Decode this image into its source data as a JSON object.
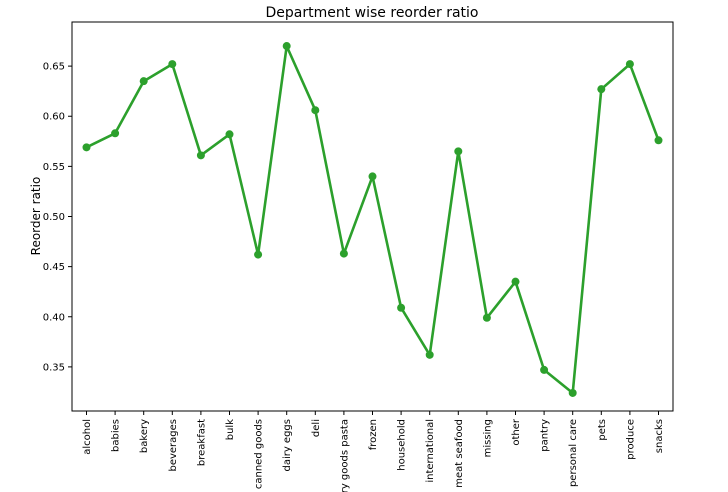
{
  "chart_data": {
    "type": "line",
    "title": "Department wise reorder ratio",
    "xlabel": "",
    "ylabel": "Reorder ratio",
    "categories": [
      "alcohol",
      "babies",
      "bakery",
      "beverages",
      "breakfast",
      "bulk",
      "canned goods",
      "dairy eggs",
      "deli",
      "dry goods pasta",
      "frozen",
      "household",
      "international",
      "meat seafood",
      "missing",
      "other",
      "pantry",
      "personal care",
      "pets",
      "produce",
      "snacks"
    ],
    "series": [
      {
        "name": "",
        "values": [
          0.569,
          0.583,
          0.635,
          0.652,
          0.561,
          0.582,
          0.462,
          0.67,
          0.606,
          0.463,
          0.54,
          0.409,
          0.362,
          0.565,
          0.399,
          0.435,
          0.347,
          0.324,
          0.627,
          0.652,
          0.576
        ],
        "color": "#2ca02c"
      }
    ],
    "yticks": [
      0.35,
      0.4,
      0.45,
      0.5,
      0.55,
      0.6,
      0.65
    ],
    "ytick_labels": [
      "0.35",
      "0.40",
      "0.45",
      "0.50",
      "0.55",
      "0.60",
      "0.65"
    ],
    "ylim": [
      0.306,
      0.694
    ],
    "grid": false,
    "legend": "none"
  }
}
